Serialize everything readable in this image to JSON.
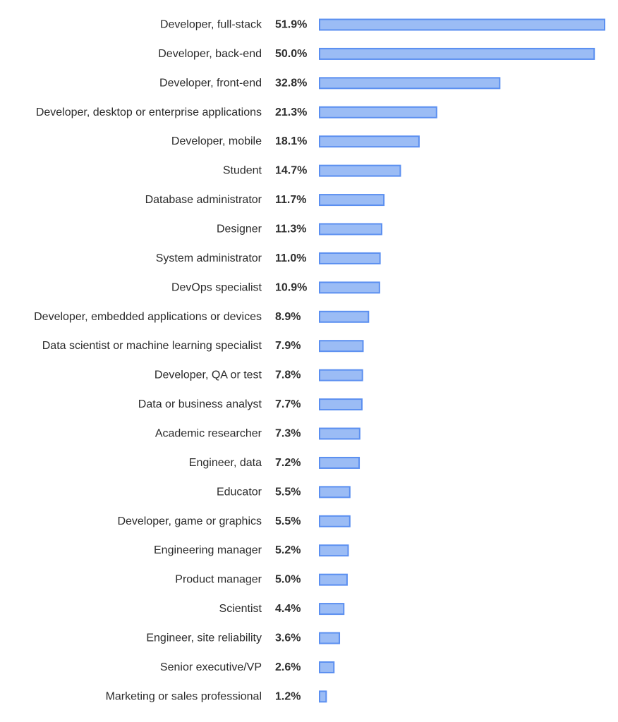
{
  "chart_data": {
    "type": "bar",
    "orientation": "horizontal",
    "title": "",
    "xlabel": "",
    "ylabel": "",
    "xlim": [
      0,
      51.9
    ],
    "grid": false,
    "legend": "none",
    "colors": {
      "bar_fill": "#9bbcf5",
      "bar_stroke": "#5b8ff0",
      "label_text": "#2b2b2b",
      "value_text": "#2f2f2f"
    },
    "categories": [
      "Developer, full-stack",
      "Developer, back-end",
      "Developer, front-end",
      "Developer, desktop or enterprise applications",
      "Developer, mobile",
      "Student",
      "Database administrator",
      "Designer",
      "System administrator",
      "DevOps specialist",
      "Developer, embedded applications or devices",
      "Data scientist or machine learning specialist",
      "Developer, QA or test",
      "Data or business analyst",
      "Academic researcher",
      "Engineer, data",
      "Educator",
      "Developer, game or graphics",
      "Engineering manager",
      "Product manager",
      "Scientist",
      "Engineer, site reliability",
      "Senior executive/VP",
      "Marketing or sales professional"
    ],
    "values": [
      51.9,
      50.0,
      32.8,
      21.3,
      18.1,
      14.7,
      11.7,
      11.3,
      11.0,
      10.9,
      8.9,
      7.9,
      7.8,
      7.7,
      7.3,
      7.2,
      5.5,
      5.5,
      5.2,
      5.0,
      4.4,
      3.6,
      2.6,
      1.2
    ],
    "value_labels": [
      "51.9%",
      "50.0%",
      "32.8%",
      "21.3%",
      "18.1%",
      "14.7%",
      "11.7%",
      "11.3%",
      "11.0%",
      "10.9%",
      "8.9%",
      "7.9%",
      "7.8%",
      "7.7%",
      "7.3%",
      "7.2%",
      "5.5%",
      "5.5%",
      "5.2%",
      "5.0%",
      "4.4%",
      "3.6%",
      "2.6%",
      "1.2%"
    ]
  }
}
